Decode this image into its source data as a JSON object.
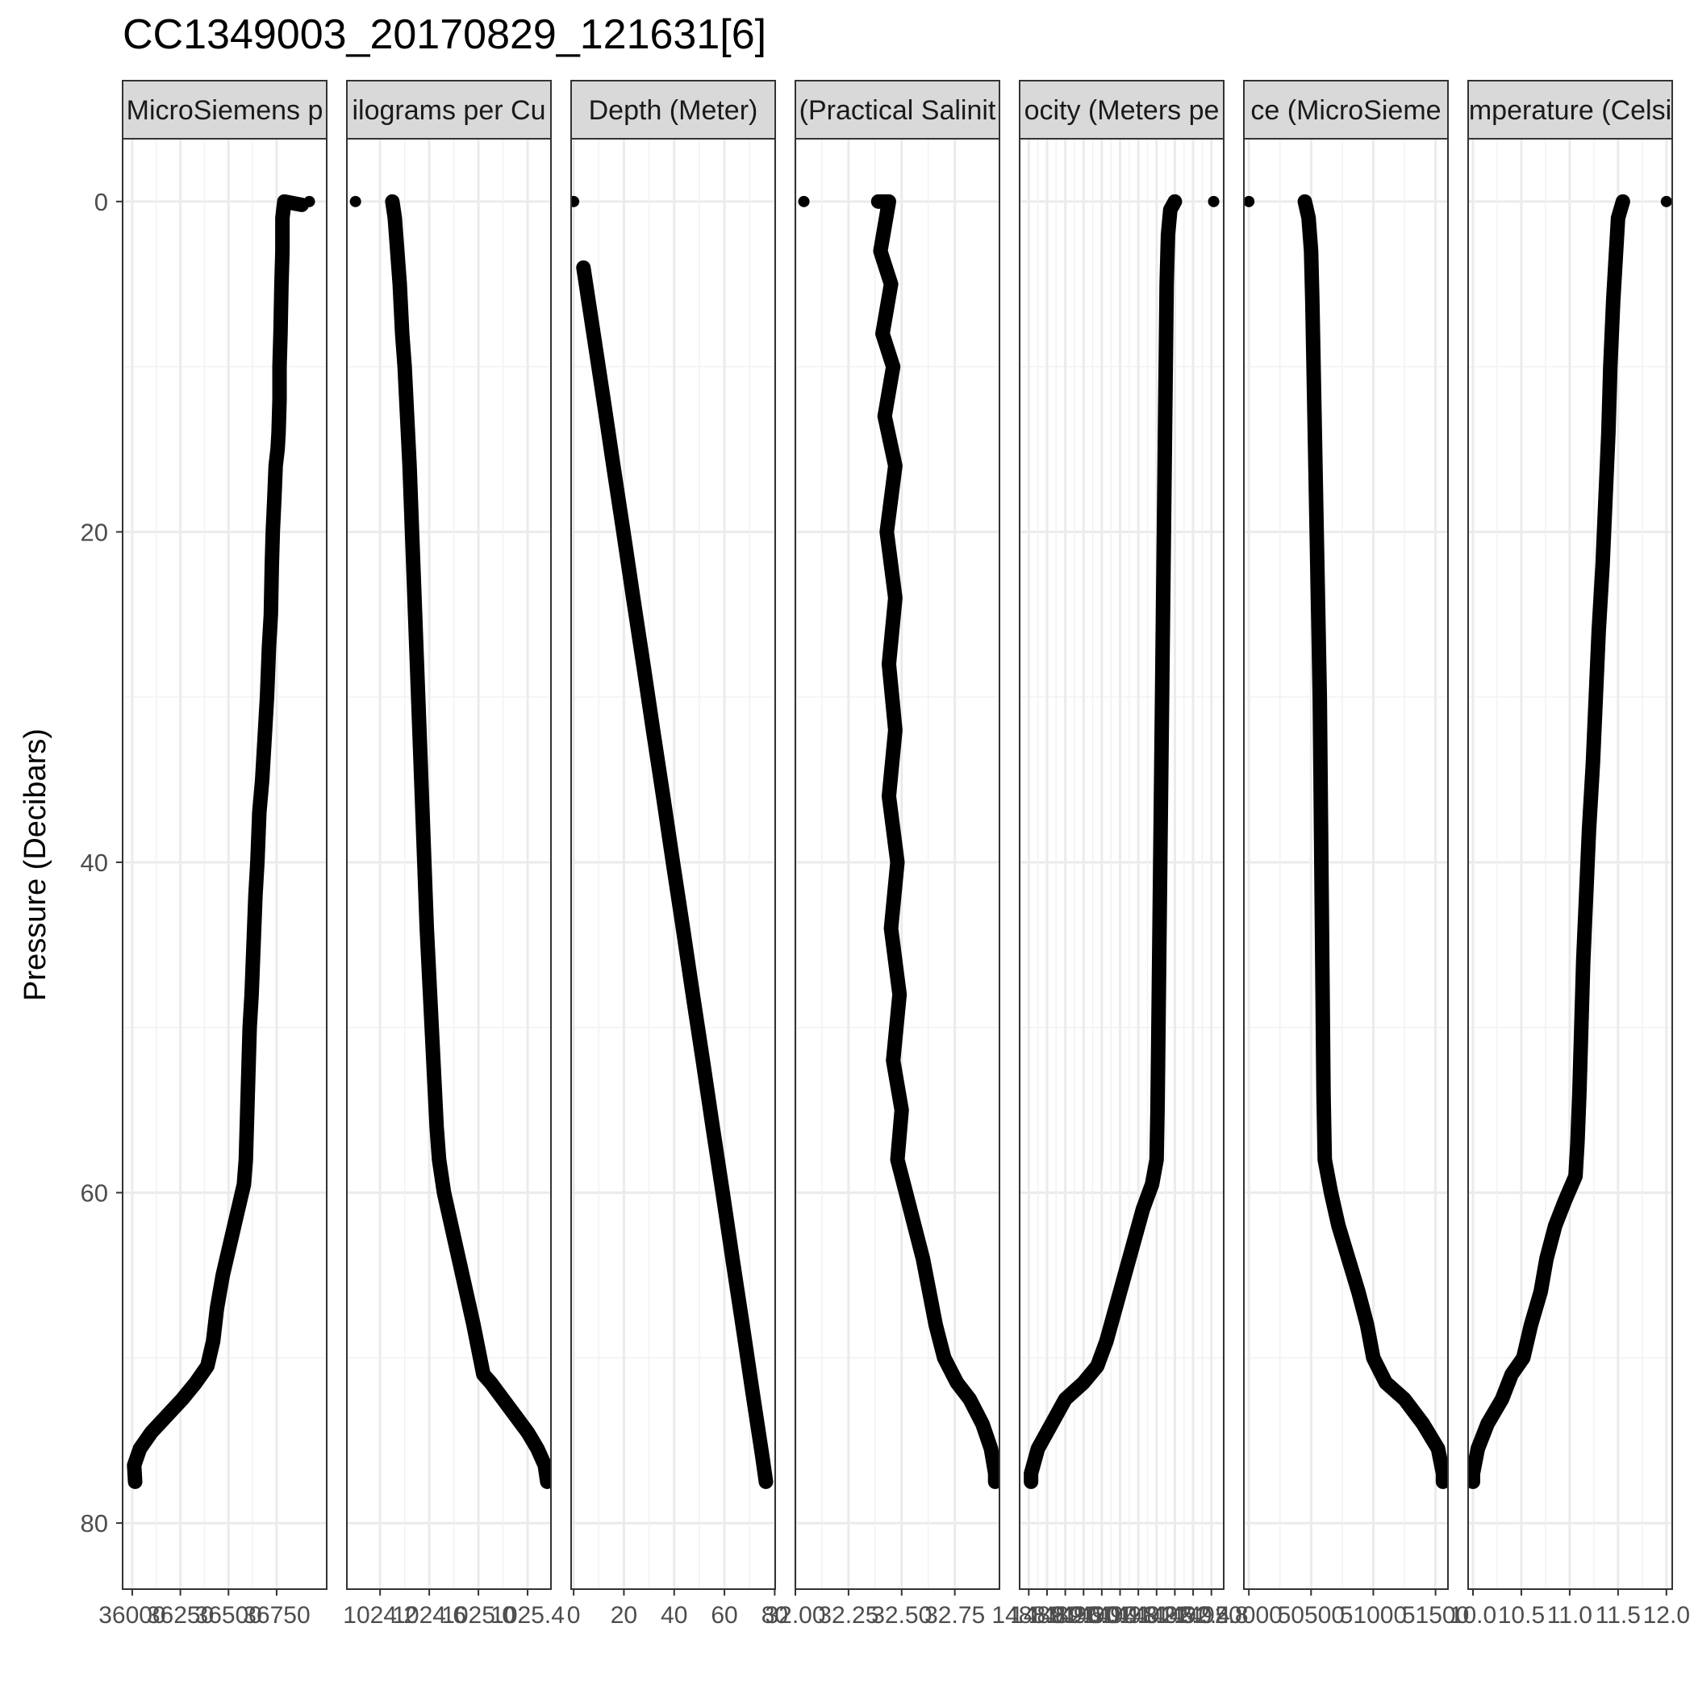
{
  "chart_data": {
    "type": "scatter",
    "title": "CC1349003_20170829_121631[6]",
    "ylabel": "Pressure (Decibars)",
    "xlabel": "",
    "grid": true,
    "y": {
      "ticks": [
        0,
        20,
        40,
        60,
        80
      ],
      "range": [
        84,
        -3.8
      ],
      "reversed": true
    },
    "panels": [
      {
        "strip": "MicroSiemens p",
        "xlim": [
          35950,
          37010
        ],
        "xticks": [
          36000,
          36250,
          36500,
          36750
        ],
        "xtick_labels": [
          "36000",
          "36250",
          "36500",
          "36750"
        ],
        "points": [
          [
            36920,
            0.0
          ],
          [
            36880,
            0.2
          ],
          [
            36790,
            0.0
          ],
          [
            36780,
            1.0
          ],
          [
            36780,
            3.0
          ],
          [
            36775,
            5.0
          ],
          [
            36770,
            8.0
          ],
          [
            36765,
            10.0
          ],
          [
            36765,
            12.0
          ],
          [
            36760,
            14.0
          ],
          [
            36755,
            15.0
          ],
          [
            36745,
            16.0
          ],
          [
            36738,
            18.0
          ],
          [
            36730,
            20.0
          ],
          [
            36725,
            22.0
          ],
          [
            36720,
            25.0
          ],
          [
            36710,
            27.0
          ],
          [
            36700,
            30.0
          ],
          [
            36690,
            32.0
          ],
          [
            36675,
            35.0
          ],
          [
            36660,
            37.0
          ],
          [
            36650,
            40.0
          ],
          [
            36640,
            42.0
          ],
          [
            36630,
            45.0
          ],
          [
            36620,
            48.0
          ],
          [
            36610,
            50.0
          ],
          [
            36605,
            52.0
          ],
          [
            36600,
            54.0
          ],
          [
            36595,
            56.0
          ],
          [
            36590,
            58.0
          ],
          [
            36580,
            59.5
          ],
          [
            36560,
            60.5
          ],
          [
            36530,
            62.0
          ],
          [
            36500,
            63.5
          ],
          [
            36470,
            65.0
          ],
          [
            36440,
            67.0
          ],
          [
            36420,
            69.0
          ],
          [
            36390,
            70.5
          ],
          [
            36330,
            71.5
          ],
          [
            36260,
            72.5
          ],
          [
            36180,
            73.5
          ],
          [
            36100,
            74.5
          ],
          [
            36040,
            75.5
          ],
          [
            36010,
            76.5
          ],
          [
            36015,
            77.5
          ]
        ]
      },
      {
        "strip": "ilograms per Cu",
        "xlim": [
          1023.93,
          1025.59
        ],
        "xticks": [
          1024.2,
          1024.6,
          1025.0,
          1025.4
        ],
        "xtick_labels": [
          "1024.2",
          "1024.6",
          "1025.0",
          "1025.4"
        ],
        "points": [
          [
            1024.0,
            0.0
          ],
          [
            1024.3,
            0.0
          ],
          [
            1024.32,
            1.0
          ],
          [
            1024.34,
            3.0
          ],
          [
            1024.36,
            5.0
          ],
          [
            1024.38,
            8.0
          ],
          [
            1024.4,
            10.0
          ],
          [
            1024.42,
            13.0
          ],
          [
            1024.44,
            16.0
          ],
          [
            1024.46,
            20.0
          ],
          [
            1024.48,
            24.0
          ],
          [
            1024.5,
            28.0
          ],
          [
            1024.52,
            32.0
          ],
          [
            1024.54,
            36.0
          ],
          [
            1024.56,
            40.0
          ],
          [
            1024.58,
            44.0
          ],
          [
            1024.6,
            47.0
          ],
          [
            1024.62,
            50.0
          ],
          [
            1024.64,
            53.0
          ],
          [
            1024.66,
            56.0
          ],
          [
            1024.68,
            58.0
          ],
          [
            1024.72,
            60.0
          ],
          [
            1024.78,
            62.0
          ],
          [
            1024.84,
            64.0
          ],
          [
            1024.9,
            66.0
          ],
          [
            1024.96,
            68.0
          ],
          [
            1025.0,
            69.5
          ],
          [
            1025.04,
            71.0
          ],
          [
            1025.1,
            71.5
          ],
          [
            1025.2,
            72.5
          ],
          [
            1025.3,
            73.5
          ],
          [
            1025.4,
            74.5
          ],
          [
            1025.48,
            75.5
          ],
          [
            1025.54,
            76.5
          ],
          [
            1025.56,
            77.5
          ]
        ]
      },
      {
        "strip": "Depth (Meter)",
        "xlim": [
          -1,
          80.2
        ],
        "xticks": [
          0,
          20,
          40,
          60,
          80
        ],
        "xtick_labels": [
          "0",
          "20",
          "40",
          "60",
          "80"
        ],
        "points": [
          [
            0.0,
            0.0
          ],
          [
            3.9,
            4.0
          ],
          [
            7.9,
            8.0
          ],
          [
            11.9,
            12.0
          ],
          [
            15.8,
            16.0
          ],
          [
            19.8,
            20.0
          ],
          [
            23.7,
            24.0
          ],
          [
            27.7,
            28.0
          ],
          [
            31.6,
            32.0
          ],
          [
            35.6,
            36.0
          ],
          [
            39.5,
            40.0
          ],
          [
            43.5,
            44.0
          ],
          [
            47.4,
            48.0
          ],
          [
            51.4,
            52.0
          ],
          [
            55.3,
            56.0
          ],
          [
            59.3,
            60.0
          ],
          [
            63.2,
            64.0
          ],
          [
            67.2,
            68.0
          ],
          [
            71.1,
            72.0
          ],
          [
            75.1,
            76.0
          ],
          [
            76.5,
            77.5
          ]
        ]
      },
      {
        "strip": "(Practical Salinit",
        "xlim": [
          32.0,
          32.96
        ],
        "xticks": [
          32.0,
          32.25,
          32.5,
          32.75
        ],
        "xtick_labels": [
          "32.00",
          "32.25",
          "32.50",
          "32.75"
        ],
        "points": [
          [
            32.04,
            0.0
          ],
          [
            32.39,
            0.0
          ],
          [
            32.44,
            0.0
          ],
          [
            32.4,
            3.0
          ],
          [
            32.45,
            5.0
          ],
          [
            32.41,
            8.0
          ],
          [
            32.46,
            10.0
          ],
          [
            32.42,
            13.0
          ],
          [
            32.47,
            16.0
          ],
          [
            32.43,
            20.0
          ],
          [
            32.47,
            24.0
          ],
          [
            32.44,
            28.0
          ],
          [
            32.47,
            32.0
          ],
          [
            32.44,
            36.0
          ],
          [
            32.48,
            40.0
          ],
          [
            32.45,
            44.0
          ],
          [
            32.49,
            48.0
          ],
          [
            32.46,
            52.0
          ],
          [
            32.5,
            55.0
          ],
          [
            32.48,
            58.0
          ],
          [
            32.52,
            60.0
          ],
          [
            32.56,
            62.0
          ],
          [
            32.6,
            64.0
          ],
          [
            32.63,
            66.0
          ],
          [
            32.66,
            68.0
          ],
          [
            32.7,
            70.0
          ],
          [
            32.76,
            71.5
          ],
          [
            32.82,
            72.5
          ],
          [
            32.88,
            74.0
          ],
          [
            32.92,
            75.5
          ],
          [
            32.94,
            77.0
          ],
          [
            32.94,
            77.5
          ]
        ]
      },
      {
        "strip": "ocity (Meters pe",
        "xlim": [
          1488.6,
          1493.07
        ],
        "xticks": [
          1488.8,
          1489.2,
          1489.6,
          1490.0,
          1490.4,
          1490.8,
          1491.2,
          1491.6,
          1492.0,
          1492.4,
          1492.8
        ],
        "xtick_labels": [
          "1488.8",
          "1489.2",
          "1489.6",
          "1490.0",
          "1490.4",
          "1490.8",
          "1491.2",
          "1491.6",
          "1492.0",
          "1492.4",
          "1492.8"
        ],
        "points": [
          [
            1492.85,
            0.0
          ],
          [
            1492.0,
            0.0
          ],
          [
            1491.9,
            0.5
          ],
          [
            1491.85,
            2.0
          ],
          [
            1491.82,
            5.0
          ],
          [
            1491.8,
            10.0
          ],
          [
            1491.78,
            15.0
          ],
          [
            1491.76,
            20.0
          ],
          [
            1491.74,
            25.0
          ],
          [
            1491.72,
            30.0
          ],
          [
            1491.7,
            35.0
          ],
          [
            1491.68,
            40.0
          ],
          [
            1491.66,
            45.0
          ],
          [
            1491.64,
            50.0
          ],
          [
            1491.62,
            55.0
          ],
          [
            1491.6,
            58.0
          ],
          [
            1491.5,
            59.5
          ],
          [
            1491.3,
            61.0
          ],
          [
            1491.1,
            63.0
          ],
          [
            1490.9,
            65.0
          ],
          [
            1490.7,
            67.0
          ],
          [
            1490.5,
            69.0
          ],
          [
            1490.3,
            70.5
          ],
          [
            1490.0,
            71.5
          ],
          [
            1489.6,
            72.5
          ],
          [
            1489.3,
            74.0
          ],
          [
            1489.0,
            75.5
          ],
          [
            1488.85,
            77.0
          ],
          [
            1488.85,
            77.5
          ]
        ]
      },
      {
        "strip": "ce (MicroSieme",
        "xlim": [
          49960,
          51600
        ],
        "xticks": [
          50000,
          50500,
          51000,
          51500
        ],
        "xtick_labels": [
          "50000",
          "50500",
          "51000",
          "51500"
        ],
        "points": [
          [
            50000,
            0.0
          ],
          [
            50450,
            0.0
          ],
          [
            50480,
            1.0
          ],
          [
            50500,
            3.0
          ],
          [
            50510,
            6.0
          ],
          [
            50520,
            10.0
          ],
          [
            50530,
            14.0
          ],
          [
            50540,
            18.0
          ],
          [
            50550,
            22.0
          ],
          [
            50560,
            26.0
          ],
          [
            50570,
            30.0
          ],
          [
            50575,
            34.0
          ],
          [
            50580,
            38.0
          ],
          [
            50585,
            42.0
          ],
          [
            50590,
            46.0
          ],
          [
            50595,
            50.0
          ],
          [
            50600,
            54.0
          ],
          [
            50610,
            58.0
          ],
          [
            50660,
            60.0
          ],
          [
            50720,
            62.0
          ],
          [
            50800,
            64.0
          ],
          [
            50880,
            66.0
          ],
          [
            50950,
            68.0
          ],
          [
            51000,
            70.0
          ],
          [
            51100,
            71.5
          ],
          [
            51250,
            72.5
          ],
          [
            51400,
            74.0
          ],
          [
            51520,
            75.5
          ],
          [
            51560,
            77.0
          ],
          [
            51560,
            77.5
          ]
        ]
      },
      {
        "strip": "mperature (Celsi",
        "xlim": [
          9.95,
          12.06
        ],
        "xticks": [
          10.0,
          10.5,
          11.0,
          11.5,
          12.0
        ],
        "xtick_labels": [
          "10.0",
          "10.5",
          "11.0",
          "11.5",
          "12.0"
        ],
        "points": [
          [
            12.0,
            0.0
          ],
          [
            11.55,
            0.0
          ],
          [
            11.5,
            1.0
          ],
          [
            11.48,
            3.0
          ],
          [
            11.45,
            6.0
          ],
          [
            11.42,
            10.0
          ],
          [
            11.4,
            14.0
          ],
          [
            11.37,
            18.0
          ],
          [
            11.34,
            22.0
          ],
          [
            11.3,
            26.0
          ],
          [
            11.27,
            30.0
          ],
          [
            11.24,
            34.0
          ],
          [
            11.2,
            38.0
          ],
          [
            11.17,
            42.0
          ],
          [
            11.14,
            46.0
          ],
          [
            11.12,
            50.0
          ],
          [
            11.1,
            54.0
          ],
          [
            11.08,
            57.0
          ],
          [
            11.06,
            59.0
          ],
          [
            10.95,
            60.5
          ],
          [
            10.85,
            62.0
          ],
          [
            10.76,
            64.0
          ],
          [
            10.7,
            66.0
          ],
          [
            10.6,
            68.0
          ],
          [
            10.52,
            70.0
          ],
          [
            10.4,
            71.0
          ],
          [
            10.3,
            72.5
          ],
          [
            10.15,
            74.0
          ],
          [
            10.05,
            75.5
          ],
          [
            10.0,
            77.0
          ],
          [
            10.0,
            77.5
          ]
        ]
      }
    ]
  }
}
